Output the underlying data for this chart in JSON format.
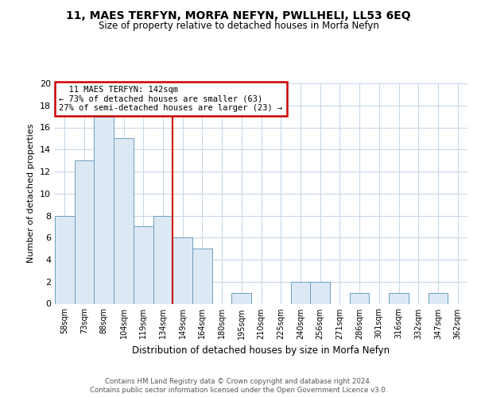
{
  "title": "11, MAES TERFYN, MORFA NEFYN, PWLLHELI, LL53 6EQ",
  "subtitle": "Size of property relative to detached houses in Morfa Nefyn",
  "xlabel": "Distribution of detached houses by size in Morfa Nefyn",
  "ylabel": "Number of detached properties",
  "bin_labels": [
    "58sqm",
    "73sqm",
    "88sqm",
    "104sqm",
    "119sqm",
    "134sqm",
    "149sqm",
    "164sqm",
    "180sqm",
    "195sqm",
    "210sqm",
    "225sqm",
    "240sqm",
    "256sqm",
    "271sqm",
    "286sqm",
    "301sqm",
    "316sqm",
    "332sqm",
    "347sqm",
    "362sqm"
  ],
  "bar_values": [
    8,
    13,
    17,
    15,
    7,
    8,
    6,
    5,
    0,
    1,
    0,
    0,
    2,
    2,
    0,
    1,
    0,
    1,
    0,
    1,
    0
  ],
  "bar_color": "#dce9f5",
  "bar_edgecolor": "#6a9fc0",
  "property_label": "11 MAES TERFYN: 142sqm",
  "pct_smaller": 73,
  "n_smaller": 63,
  "pct_larger_semi": 27,
  "n_larger_semi": 23,
  "vline_x_index": 5.5,
  "vline_color": "#cc0000",
  "annotation_box_edgecolor": "#cc0000",
  "ylim": [
    0,
    20
  ],
  "yticks": [
    0,
    2,
    4,
    6,
    8,
    10,
    12,
    14,
    16,
    18,
    20
  ],
  "footer_line1": "Contains HM Land Registry data © Crown copyright and database right 2024.",
  "footer_line2": "Contains public sector information licensed under the Open Government Licence v3.0.",
  "background_color": "#ffffff",
  "grid_color": "#c8d8e8"
}
